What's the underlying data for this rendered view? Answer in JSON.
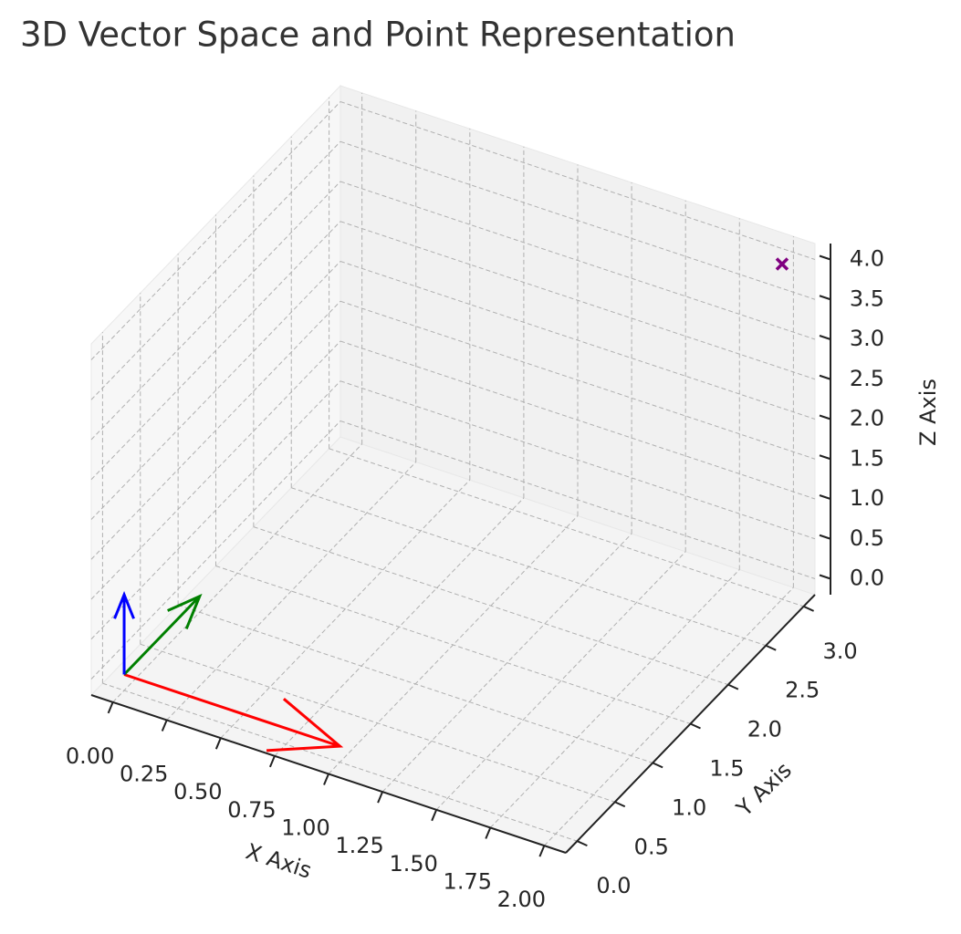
{
  "chart_data": {
    "type": "vector3d",
    "title": "3D Vector Space and Point Representation",
    "xlabel": "X Axis",
    "ylabel": "Y Axis",
    "zlabel": "Z Axis",
    "xlim": [
      -0.1,
      2.1
    ],
    "ylim": [
      -0.15,
      3.15
    ],
    "zlim": [
      -0.2,
      4.2
    ],
    "xticks": [
      {
        "value": 0,
        "label": "0.00"
      },
      {
        "value": 0.25,
        "label": "0.25"
      },
      {
        "value": 0.5,
        "label": "0.50"
      },
      {
        "value": 0.75,
        "label": "0.75"
      },
      {
        "value": 1,
        "label": "1.00"
      },
      {
        "value": 1.25,
        "label": "1.25"
      },
      {
        "value": 1.5,
        "label": "1.50"
      },
      {
        "value": 1.75,
        "label": "1.75"
      },
      {
        "value": 2,
        "label": "2.00"
      }
    ],
    "yticks": [
      {
        "value": 0,
        "label": "0.0"
      },
      {
        "value": 0.5,
        "label": "0.5"
      },
      {
        "value": 1,
        "label": "1.0"
      },
      {
        "value": 1.5,
        "label": "1.5"
      },
      {
        "value": 2,
        "label": "2.0"
      },
      {
        "value": 2.5,
        "label": "2.5"
      },
      {
        "value": 3,
        "label": "3.0"
      }
    ],
    "zticks": [
      {
        "value": 0,
        "label": "0.0"
      },
      {
        "value": 0.5,
        "label": "0.5"
      },
      {
        "value": 1,
        "label": "1.0"
      },
      {
        "value": 1.5,
        "label": "1.5"
      },
      {
        "value": 2,
        "label": "2.0"
      },
      {
        "value": 2.5,
        "label": "2.5"
      },
      {
        "value": 3,
        "label": "3.0"
      },
      {
        "value": 3.5,
        "label": "3.5"
      },
      {
        "value": 4,
        "label": "4.0"
      }
    ],
    "grid": true,
    "origin": [
      0,
      0,
      0
    ],
    "vectors": [
      {
        "color": "#ff0000",
        "values": [
          1,
          0,
          0
        ]
      },
      {
        "color": "#008000",
        "values": [
          0,
          1,
          0
        ]
      },
      {
        "color": "#0000ff",
        "values": [
          0,
          0,
          1
        ]
      }
    ],
    "point": {
      "color": "#800080",
      "marker": "x",
      "values": [
        2,
        3,
        4
      ]
    }
  }
}
